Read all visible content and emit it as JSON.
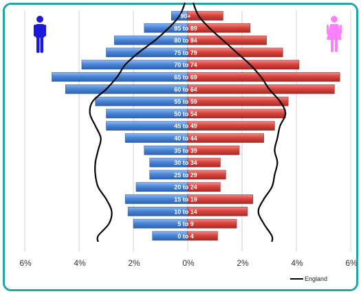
{
  "header": {
    "partial_title": ""
  },
  "chart_data": {
    "type": "bar",
    "orientation": "horizontal-pyramid",
    "categories": [
      "0 to 4",
      "5 to 9",
      "10 to 14",
      "15 to 19",
      "20 to 24",
      "25 to 29",
      "30 to 34",
      "35 to 39",
      "40 to 44",
      "45 to 49",
      "50 to 54",
      "55 to 59",
      "60 to 64",
      "65 to 69",
      "70 to 74",
      "75 to 79",
      "80 to 84",
      "85 to 89",
      "90+"
    ],
    "series": [
      {
        "name": "",
        "side": "left",
        "color": "#4a86d8",
        "values": [
          1.3,
          2.0,
          2.2,
          2.3,
          1.9,
          1.4,
          1.4,
          1.6,
          2.3,
          3.0,
          3.0,
          3.4,
          4.5,
          5.0,
          3.9,
          3.0,
          2.7,
          1.6,
          0.6
        ]
      },
      {
        "name": "",
        "side": "right",
        "color": "#d9443e",
        "values": [
          1.1,
          1.8,
          2.2,
          2.4,
          1.2,
          1.4,
          1.2,
          1.9,
          2.8,
          3.2,
          3.6,
          3.7,
          5.4,
          5.6,
          4.1,
          3.5,
          2.9,
          2.3,
          1.3
        ]
      }
    ],
    "reference_line": {
      "name": "England",
      "color": "#000000",
      "left": [
        3.3,
        2.9,
        2.8,
        3.0,
        3.3,
        3.4,
        3.4,
        3.3,
        3.2,
        3.4,
        3.6,
        3.5,
        3.0,
        2.6,
        2.3,
        1.8,
        1.2,
        0.7,
        0.3
      ],
      "right": [
        3.1,
        2.8,
        2.6,
        2.8,
        3.1,
        3.2,
        3.3,
        3.2,
        3.3,
        3.4,
        3.6,
        3.4,
        3.0,
        2.7,
        2.3,
        1.8,
        1.3,
        0.8,
        0.4
      ]
    },
    "x_ticks": [
      "6%",
      "4%",
      "2%",
      "0%",
      "2%",
      "4%",
      "6%"
    ],
    "xlim": [
      -6,
      6
    ],
    "grid": "vertical",
    "legend": {
      "placement": "bottom-right",
      "label": "England"
    },
    "icons": {
      "left": "male-figure-icon",
      "right": "female-figure-icon"
    },
    "colors": {
      "male_icon": "#1a1adc",
      "female_icon": "#ff80ff",
      "frame": "#21a6a6",
      "label_fill": "#ffffff"
    }
  }
}
